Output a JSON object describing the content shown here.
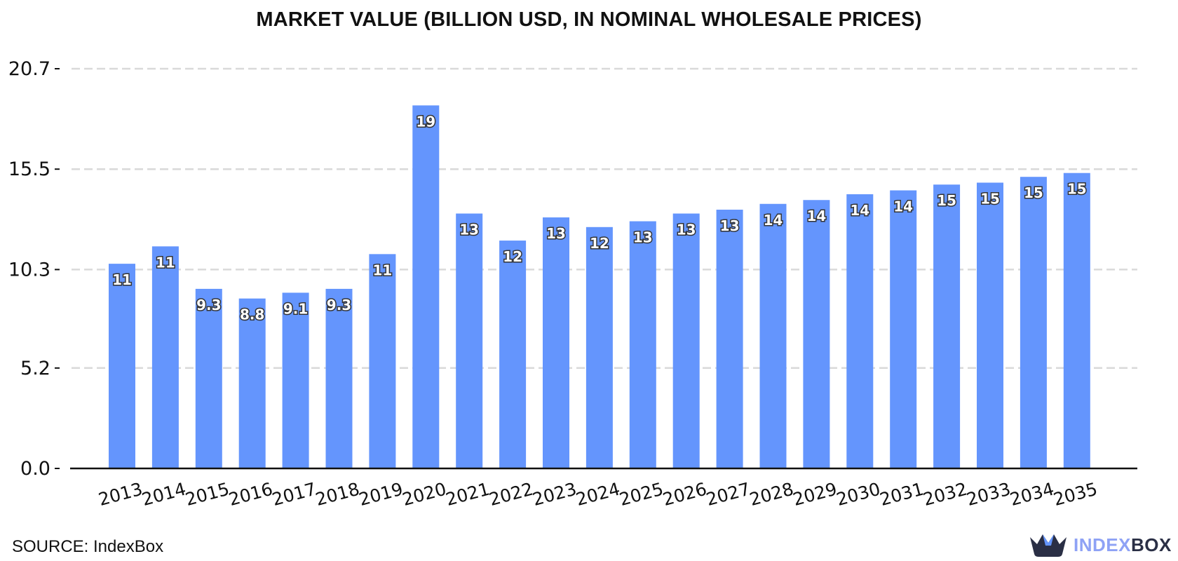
{
  "chart_data": {
    "type": "bar",
    "title": "MARKET VALUE (BILLION USD, IN NOMINAL WHOLESALE PRICES)",
    "xlabel": "",
    "ylabel": "",
    "ylim": [
      0,
      20.7
    ],
    "yticks": [
      "0.0",
      "5.2",
      "10.3",
      "15.5",
      "20.7"
    ],
    "grid": true,
    "bar_color": "#6495fd",
    "categories": [
      "2013",
      "2014",
      "2015",
      "2016",
      "2017",
      "2018",
      "2019",
      "2020",
      "2021",
      "2022",
      "2023",
      "2024",
      "2025",
      "2026",
      "2027",
      "2028",
      "2029",
      "2030",
      "2031",
      "2032",
      "2033",
      "2034",
      "2035"
    ],
    "values": [
      10.6,
      11.5,
      9.3,
      8.8,
      9.1,
      9.3,
      11.1,
      18.8,
      13.2,
      11.8,
      13.0,
      12.5,
      12.8,
      13.2,
      13.4,
      13.7,
      13.9,
      14.2,
      14.4,
      14.7,
      14.8,
      15.1,
      15.3
    ],
    "data_labels": [
      "11",
      "11",
      "9.3",
      "8.8",
      "9.1",
      "9.3",
      "11",
      "19",
      "13",
      "12",
      "13",
      "12",
      "13",
      "13",
      "13",
      "14",
      "14",
      "14",
      "14",
      "15",
      "15",
      "15",
      "15"
    ]
  },
  "footer": {
    "source": "SOURCE: IndexBox",
    "brand_part1": "INDEX",
    "brand_part2": "BOX"
  }
}
